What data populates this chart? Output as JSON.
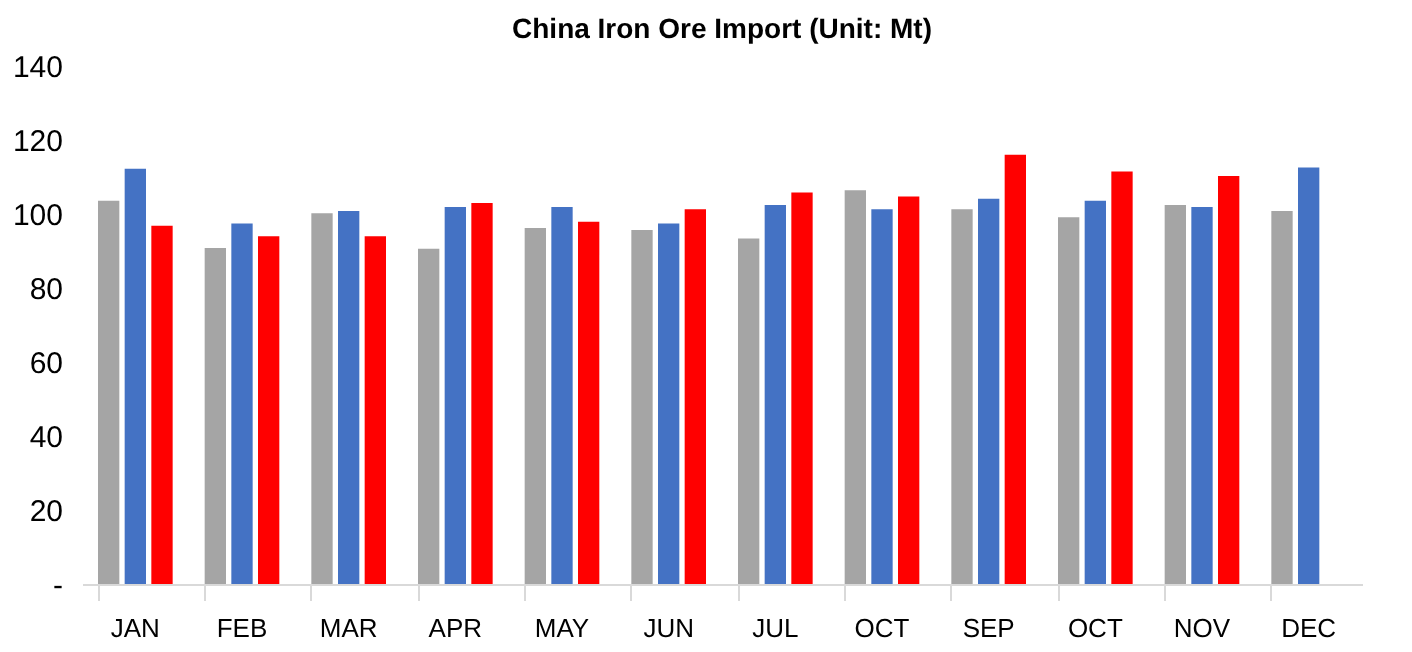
{
  "chart_data": {
    "type": "bar",
    "title": "China Iron Ore Import (Unit: Mt)",
    "categories": [
      "JAN",
      "FEB",
      "MAR",
      "APR",
      "MAY",
      "JUN",
      "JUL",
      "OCT",
      "SEP",
      "OCT",
      "NOV",
      "DEC"
    ],
    "series": [
      {
        "color": "#a5a5a5",
        "values": [
          103.6,
          90.8,
          100.2,
          90.6,
          96.2,
          95.7,
          93.4,
          106.4,
          101.3,
          99.1,
          102.4,
          100.8
        ]
      },
      {
        "color": "#4472c4",
        "values": [
          112.2,
          97.4,
          100.8,
          101.9,
          101.9,
          97.4,
          102.4,
          101.3,
          104.1,
          103.6,
          101.9,
          112.6
        ]
      },
      {
        "color": "#ff0000",
        "values": [
          96.8,
          94.0,
          94.0,
          103.0,
          97.9,
          101.3,
          105.8,
          104.7,
          116.0,
          111.5,
          110.3,
          null
        ]
      }
    ],
    "ylim": [
      0,
      140
    ],
    "yticks": [
      {
        "value": 0,
        "label": "-"
      },
      20,
      40,
      60,
      80,
      100,
      120,
      140
    ],
    "grid": false,
    "legend": false
  }
}
